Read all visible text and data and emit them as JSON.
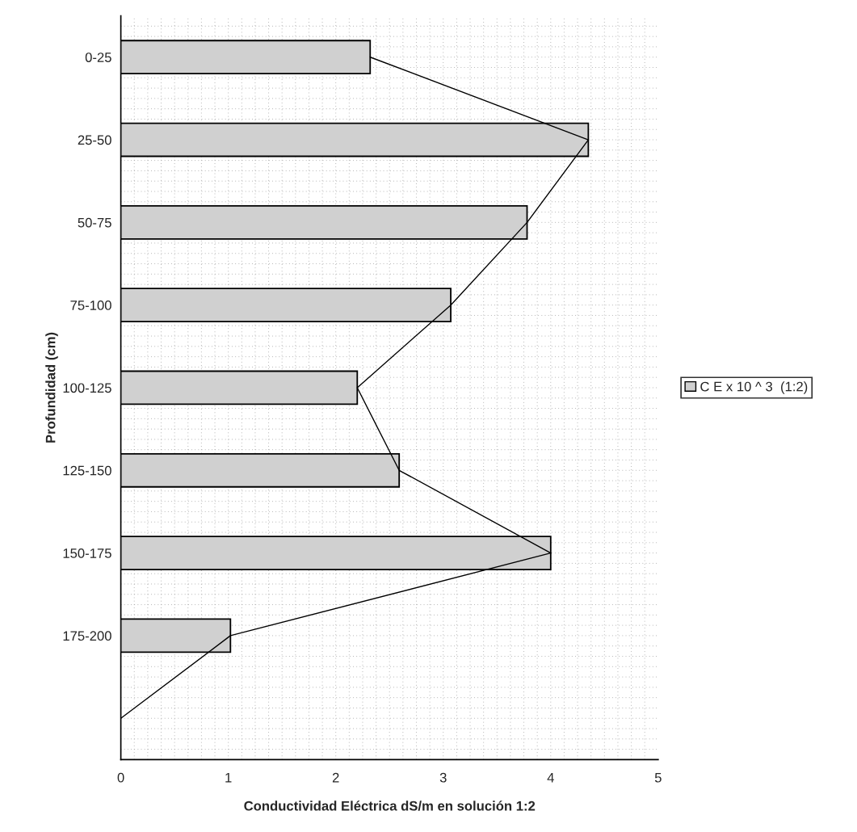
{
  "chart_data": {
    "type": "bar",
    "orientation": "horizontal",
    "categories": [
      "0-25",
      "25-50",
      "50-75",
      "75-100",
      "100-125",
      "125-150",
      "150-175",
      "175-200",
      null
    ],
    "series": [
      {
        "name": "C E x 10 ^ 3  (1:2)",
        "color": "#d0d0d0",
        "values": [
          2.32,
          4.35,
          3.78,
          3.07,
          2.2,
          2.59,
          4.0,
          1.02,
          null
        ]
      },
      {
        "type": "line",
        "color": "#000000",
        "values": [
          2.32,
          4.35,
          3.78,
          3.07,
          2.2,
          2.59,
          4.0,
          1.02,
          0
        ]
      }
    ],
    "xlabel": "Conductividad Eléctrica dS/m en solución 1:2",
    "ylabel": "Profundidad (cm)",
    "xlim": [
      0,
      5
    ],
    "xticks": [
      0,
      1,
      2,
      3,
      4,
      5
    ],
    "grid": true,
    "legend": "right",
    "line_style": "solid"
  }
}
